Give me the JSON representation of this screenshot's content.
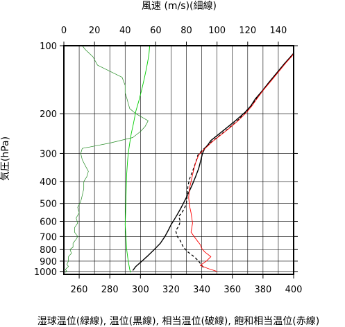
{
  "chart_data": {
    "type": "line",
    "title_top": "風速 (m/s)(細線)",
    "ylabel": "気圧(hPa)",
    "xlabel_bottom": "湿球温位(緑線), 温位(黒線), 相当温位(破線), 飽和相当温位(赤線)",
    "y_scale": "log",
    "y_range": [
      1030,
      100
    ],
    "y_ticks": [
      {
        "value": 100,
        "label": "100"
      },
      {
        "value": 200,
        "label": "200"
      },
      {
        "value": 300,
        "label": "300"
      },
      {
        "value": 400,
        "label": "400"
      },
      {
        "value": 500,
        "label": "500"
      },
      {
        "value": 600,
        "label": "600"
      },
      {
        "value": 700,
        "label": "700"
      },
      {
        "value": 800,
        "label": "800"
      },
      {
        "value": 900,
        "label": "900"
      },
      {
        "value": 1000,
        "label": "1000"
      }
    ],
    "x_bottom": {
      "range": [
        250,
        400
      ],
      "ticks": [
        {
          "value": 260,
          "label": "260"
        },
        {
          "value": 280,
          "label": "280"
        },
        {
          "value": 300,
          "label": "300"
        },
        {
          "value": 320,
          "label": "320"
        },
        {
          "value": 340,
          "label": "340"
        },
        {
          "value": 360,
          "label": "360"
        },
        {
          "value": 380,
          "label": "380"
        },
        {
          "value": 400,
          "label": "400"
        }
      ],
      "grid_every": 10
    },
    "x_top": {
      "range": [
        0,
        150
      ],
      "ticks": [
        {
          "value": 0,
          "label": "0"
        },
        {
          "value": 20,
          "label": "20"
        },
        {
          "value": 40,
          "label": "40"
        },
        {
          "value": 60,
          "label": "60"
        },
        {
          "value": 80,
          "label": "80"
        },
        {
          "value": 100,
          "label": "100"
        },
        {
          "value": 120,
          "label": "120"
        },
        {
          "value": 140,
          "label": "140"
        }
      ]
    },
    "series": [
      {
        "axis": "top",
        "color": "#228B22",
        "width": 0.7,
        "dash": "",
        "points": [
          [
            1,
            1010
          ],
          [
            2,
            1000
          ],
          [
            1,
            980
          ],
          [
            3,
            950
          ],
          [
            2,
            930
          ],
          [
            3,
            900
          ],
          [
            3,
            860
          ],
          [
            5,
            830
          ],
          [
            4,
            800
          ],
          [
            6,
            780
          ],
          [
            6,
            750
          ],
          [
            8,
            720
          ],
          [
            9,
            700
          ],
          [
            7,
            670
          ],
          [
            7,
            640
          ],
          [
            9,
            610
          ],
          [
            8,
            580
          ],
          [
            10,
            550
          ],
          [
            9,
            520
          ],
          [
            11,
            490
          ],
          [
            12,
            460
          ],
          [
            13,
            430
          ],
          [
            13,
            400
          ],
          [
            15,
            380
          ],
          [
            16,
            360
          ],
          [
            14,
            340
          ],
          [
            12,
            320
          ],
          [
            11,
            300
          ],
          [
            12,
            285
          ],
          [
            18,
            280
          ],
          [
            30,
            270
          ],
          [
            45,
            255
          ],
          [
            50,
            240
          ],
          [
            53,
            228
          ],
          [
            55,
            215
          ],
          [
            47,
            200
          ],
          [
            43,
            190
          ],
          [
            42,
            180
          ],
          [
            41,
            170
          ],
          [
            40,
            162
          ],
          [
            40,
            150
          ],
          [
            38,
            138
          ],
          [
            22,
            122
          ],
          [
            19,
            112
          ],
          [
            14,
            104
          ],
          [
            12,
            100
          ]
        ]
      },
      {
        "axis": "bottom",
        "color": "#00CC00",
        "width": 0.9,
        "dash": "",
        "points": [
          [
            293.5,
            1010
          ],
          [
            293,
            980
          ],
          [
            292,
            900
          ],
          [
            291,
            800
          ],
          [
            290.5,
            700
          ],
          [
            290,
            620
          ],
          [
            290.3,
            550
          ],
          [
            290.5,
            480
          ],
          [
            290.8,
            420
          ],
          [
            291,
            370
          ],
          [
            291.5,
            330
          ],
          [
            292,
            300
          ],
          [
            293,
            270
          ],
          [
            294,
            245
          ],
          [
            295.5,
            220
          ],
          [
            297,
            195
          ],
          [
            299,
            175
          ],
          [
            301,
            155
          ],
          [
            302.5,
            140
          ],
          [
            304,
            125
          ],
          [
            305.5,
            110
          ],
          [
            306,
            100
          ]
        ]
      },
      {
        "axis": "bottom",
        "color": "#000000",
        "width": 1.4,
        "dash": "",
        "points": [
          [
            295,
            990
          ],
          [
            297,
            950
          ],
          [
            301,
            900
          ],
          [
            305,
            850
          ],
          [
            309,
            800
          ],
          [
            313,
            750
          ],
          [
            316,
            700
          ],
          [
            318,
            660
          ],
          [
            320,
            620
          ],
          [
            322,
            590
          ],
          [
            324,
            560
          ],
          [
            326,
            530
          ],
          [
            328,
            500
          ],
          [
            330,
            470
          ],
          [
            332,
            440
          ],
          [
            334,
            410
          ],
          [
            336,
            380
          ],
          [
            338,
            350
          ],
          [
            339.5,
            320
          ],
          [
            340.5,
            300
          ],
          [
            342,
            285
          ],
          [
            344,
            275
          ],
          [
            346,
            263
          ],
          [
            350,
            250
          ],
          [
            356,
            232
          ],
          [
            362,
            215
          ],
          [
            368,
            198
          ],
          [
            372,
            185
          ],
          [
            375,
            172
          ],
          [
            379,
            160
          ],
          [
            384,
            145
          ],
          [
            389,
            132
          ],
          [
            394,
            120
          ],
          [
            398,
            112
          ],
          [
            400,
            108
          ]
        ]
      },
      {
        "axis": "bottom",
        "color": "#000000",
        "width": 1.3,
        "dash": "4,3",
        "points": [
          [
            341,
            960
          ],
          [
            338,
            900
          ],
          [
            335,
            860
          ],
          [
            331,
            820
          ],
          [
            328,
            780
          ],
          [
            326,
            730
          ],
          [
            324,
            700
          ],
          [
            323,
            660
          ],
          [
            325,
            630
          ],
          [
            326,
            600
          ],
          [
            325,
            570
          ],
          [
            327,
            550
          ],
          [
            329,
            520
          ],
          [
            330,
            500
          ],
          [
            330.5,
            460
          ],
          [
            331,
            420
          ],
          [
            332,
            390
          ],
          [
            334,
            360
          ],
          [
            336,
            330
          ],
          [
            337.5,
            305
          ],
          [
            340,
            292
          ],
          [
            343,
            280
          ],
          [
            346,
            268
          ],
          [
            351,
            252
          ],
          [
            357,
            234
          ],
          [
            363,
            216
          ],
          [
            368,
            200
          ],
          [
            372,
            186
          ],
          [
            375,
            174
          ],
          [
            379,
            160
          ],
          [
            384,
            145
          ],
          [
            389,
            132
          ],
          [
            394,
            120
          ],
          [
            398,
            112
          ],
          [
            400,
            108
          ]
        ]
      },
      {
        "axis": "bottom",
        "color": "#FF0000",
        "width": 0.9,
        "dash": "",
        "points": [
          [
            350,
            1000
          ],
          [
            344,
            970
          ],
          [
            339,
            940
          ],
          [
            343,
            900
          ],
          [
            346,
            860
          ],
          [
            342,
            820
          ],
          [
            340,
            790
          ],
          [
            339,
            760
          ],
          [
            337,
            730
          ],
          [
            335,
            700
          ],
          [
            333,
            670
          ],
          [
            333.5,
            640
          ],
          [
            334,
            610
          ],
          [
            333.5,
            580
          ],
          [
            333,
            550
          ],
          [
            332,
            510
          ],
          [
            331.5,
            470
          ],
          [
            332,
            430
          ],
          [
            333,
            400
          ],
          [
            334.5,
            360
          ],
          [
            336,
            330
          ],
          [
            338,
            305
          ],
          [
            341,
            290
          ],
          [
            344,
            278
          ],
          [
            347,
            266
          ],
          [
            352,
            250
          ],
          [
            358,
            232
          ],
          [
            364,
            214
          ],
          [
            369,
            198
          ],
          [
            373,
            184
          ],
          [
            376,
            172
          ],
          [
            380,
            158
          ],
          [
            385,
            144
          ],
          [
            390,
            131
          ],
          [
            395,
            119
          ],
          [
            399,
            111
          ],
          [
            400,
            108
          ]
        ]
      }
    ]
  }
}
